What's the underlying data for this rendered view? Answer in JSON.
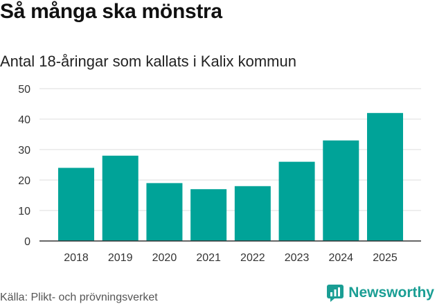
{
  "title": "Så många ska mönstra",
  "subtitle": "Antal 18-åringar som kallats i Kalix kommun",
  "source": "Källa: Plikt- och prövningsverket",
  "brand": {
    "name": "Newsworthy",
    "color": "#1a9e94",
    "icon": "chart-logo-icon"
  },
  "chart_data": {
    "type": "bar",
    "categories": [
      "2018",
      "2019",
      "2020",
      "2021",
      "2022",
      "2023",
      "2024",
      "2025"
    ],
    "values": [
      24,
      28,
      19,
      17,
      18,
      26,
      33,
      42
    ],
    "ylim": [
      0,
      50
    ],
    "yticks": [
      0,
      10,
      20,
      30,
      40,
      50
    ],
    "grid": true,
    "legend": "none",
    "bar_color": "#00a398",
    "grid_color": "#dddddd",
    "axis_color": "#333333"
  }
}
